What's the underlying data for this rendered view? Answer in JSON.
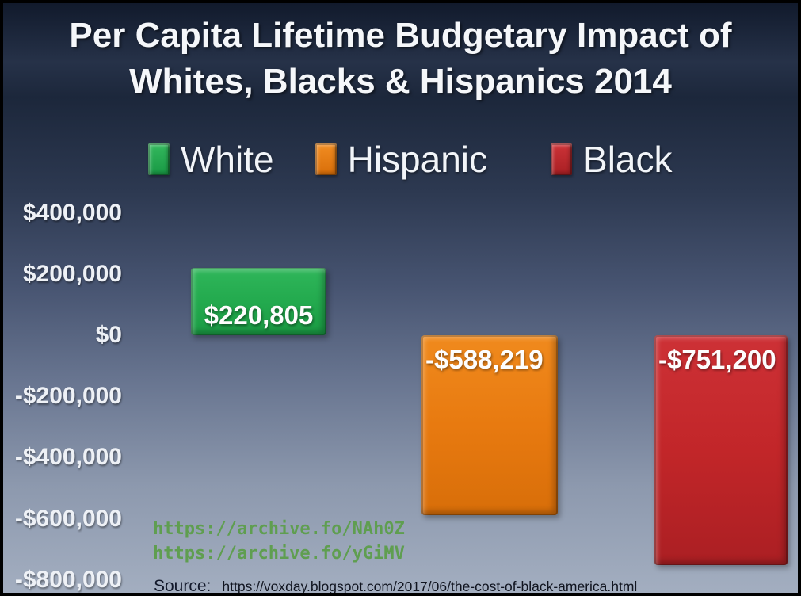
{
  "title": {
    "line1": "Per Capita Lifetime Budgetary Impact of",
    "line2": "Whites, Blacks & Hispanics 2014"
  },
  "legend": {
    "items": [
      {
        "label": "White",
        "color": "#24ab4f",
        "color_top": "#34b95e",
        "color_bottom": "#189844"
      },
      {
        "label": "Hispanic",
        "color": "#ea7d15",
        "color_top": "#f28d22",
        "color_bottom": "#d86e09"
      },
      {
        "label": "Black",
        "color": "#c1272b",
        "color_top": "#cd3338",
        "color_bottom": "#a81f23"
      }
    ]
  },
  "bars": [
    {
      "name": "White",
      "color_top": "#2fb65a",
      "color_main": "#23aa4e",
      "color_bottom": "#1a9b44"
    },
    {
      "name": "Hispanic",
      "color_top": "#f08a1d",
      "color_main": "#e87a10",
      "color_bottom": "#d86e09"
    },
    {
      "name": "Black",
      "color_top": "#cd3136",
      "color_main": "#c22629",
      "color_bottom": "#ab1f23"
    }
  ],
  "links": {
    "line1": "https://archive.fo/NAh0Z",
    "line2": "https://archive.fo/yGiMV",
    "color": "#5f9e50"
  },
  "source": {
    "label": "Source:",
    "url": "https://voxday.blogspot.com/2017/06/the-cost-of-black-america.html"
  },
  "chart_data": {
    "type": "bar",
    "title": "Per Capita Lifetime Budgetary Impact of Whites, Blacks & Hispanics 2014",
    "categories": [
      "White",
      "Hispanic",
      "Black"
    ],
    "values": [
      220805,
      -588219,
      -751200
    ],
    "data_labels": [
      "$220,805",
      "-$588,219",
      "-$751,200"
    ],
    "bar_colors": [
      "#24ab4f",
      "#ea7d15",
      "#c1272b"
    ],
    "xlabel": "",
    "ylabel": "",
    "ylim": [
      -800000,
      400000
    ],
    "ytick_interval": 200000,
    "yticks": [
      400000,
      200000,
      0,
      -200000,
      -400000,
      -600000,
      -800000
    ],
    "ytick_labels": [
      "$400,000",
      "$200,000",
      "$0",
      "-$200,000",
      "-$400,000",
      "-$600,000",
      "-$800,000"
    ],
    "legend_entries": [
      "White",
      "Hispanic",
      "Black"
    ],
    "legend_position": "top",
    "grid": false,
    "background": "vertical gradient, dark navy top to light blue-gray bottom"
  }
}
